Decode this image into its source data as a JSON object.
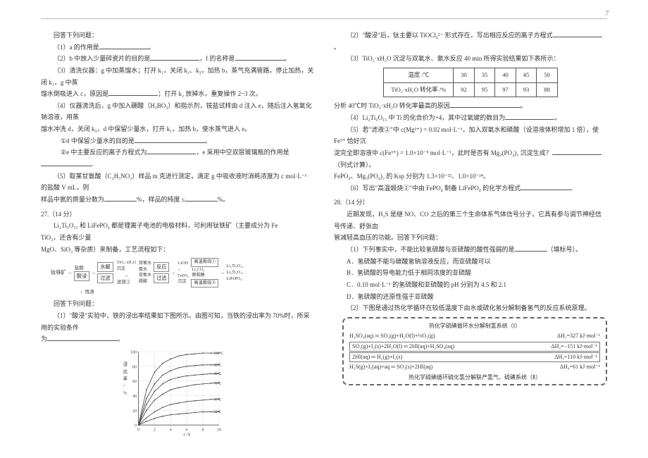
{
  "pageNumber": "7",
  "left": {
    "intro": "回答下列问题：",
    "q1": "（1）a 的作用是",
    "q2a": "（2）b 中放入少量碎瓷片的目的是",
    "q2b": "，f 的名称是",
    "q3a": "（3）清洗仪器：g 中加蒸馏水；打开 k₁，关闭 k₂、k₃，加热 b，蒸气充满管路，停止加热，关闭 k₁，g 中蒸",
    "q3b": "馏水倒吸进入 c，原因是",
    "q3c": "；打开 k₂ 放掉水，重复操作 2~3 次。",
    "q4a": "（4）仪器清洗后，g 中加入硼酸（H₃BO₃）和指示剂，铵盐试样由 d 注入 e，随后注入氢氧化钠溶液，用蒸",
    "q4b": "馏水冲洗 d，关闭 k₃，d 中保留少量水，打开 k₁，加热 b，使水蒸气进入 e。",
    "q4i": "①d 中保留少量水的目的是",
    "q4ii_a": "②e 中主要反应的离子方程式为",
    "q4ii_b": "，e 采用中空双层玻璃瓶的作用是",
    "q5a": "（5）取某甘氨酸（C₂H₅NO₂）样品 m 克进行测定，滴定 g 中吸收液时消耗浓度为 c mol·L⁻¹ 的盐酸 V mL，则",
    "q5b": "样品中氮的质量分数为",
    "q5c": "%，样品的纯度 ≤",
    "q5d": "%。",
    "sec27": "27.（14 分）",
    "p27a": "Li₂Ti₅O₁₅ 和 LiFePO₄ 都是锂离子电池的电极材料，可利用钛铁矿（主要成分为 Fe　　　TiO₃，还含有少量",
    "p27b": "MgO、SiO₂ 等杂质）来制备，工艺流程如下：",
    "flow": {
      "start": "钛铁矿",
      "n1": "盐酸",
      "s1": "酸浸",
      "s2": "过滤",
      "r1": "残渣",
      "mid_top": "TiO₂·xH₂O",
      "n2a": "双氧水\n氨水",
      "s3": "水解",
      "s4": "过滤",
      "r2": "滤液②",
      "n2b": "双氧水\n磷酸",
      "s5": "反应",
      "s6": "过滤",
      "mid2": "FePO₄\n沉淀",
      "n3": "LiOH",
      "s7": "高温煅烧①",
      "n4": "Li₂CO₃\n葡萄糖",
      "s8": "高温煅烧②",
      "out1_top": "Li₂Ti₅O₁₅",
      "out1_mid": "Li₂Ti₅O₁₅",
      "out2": "LiFePO₄"
    },
    "p27c": "回答下列问题：",
    "p27d": "（1）\"酸浸\"实验中，铁的浸出率结果如下图所示。由图可知，当铁的浸出率为 70%时，所采用的实验条件",
    "p27e": "为",
    "chart": {
      "type": "line",
      "xlim": [
        0,
        10
      ],
      "ylim": [
        0,
        100
      ],
      "xtick_step": 2,
      "ytick_step": 20,
      "xlabel": "t / h",
      "ylabel": "浸\n出\n率\n/\n%",
      "grid_color": "#d8d8d8",
      "axis_color": "#555555",
      "line_color": "#444444",
      "background_color": "#ffffff",
      "series": [
        {
          "label": "100℃",
          "label_pos": [
            9.2,
            98
          ],
          "points": [
            [
              0,
              0
            ],
            [
              1,
              48
            ],
            [
              2,
              72
            ],
            [
              3,
              84
            ],
            [
              4,
              90
            ],
            [
              5,
              94
            ],
            [
              6,
              96
            ],
            [
              7,
              97
            ],
            [
              8,
              98
            ],
            [
              9,
              98
            ],
            [
              10,
              98
            ]
          ]
        },
        {
          "label": "90℃",
          "label_pos": [
            9.2,
            82
          ],
          "points": [
            [
              0,
              0
            ],
            [
              1,
              36
            ],
            [
              2,
              56
            ],
            [
              3,
              68
            ],
            [
              4,
              74
            ],
            [
              5,
              78
            ],
            [
              6,
              80
            ],
            [
              7,
              81
            ],
            [
              8,
              82
            ],
            [
              9,
              82
            ],
            [
              10,
              82
            ]
          ]
        },
        {
          "label": "80℃",
          "label_pos": [
            9.2,
            70
          ],
          "points": [
            [
              0,
              0
            ],
            [
              1,
              28
            ],
            [
              2,
              46
            ],
            [
              3,
              56
            ],
            [
              4,
              62
            ],
            [
              5,
              65
            ],
            [
              6,
              67
            ],
            [
              7,
              68
            ],
            [
              8,
              69
            ],
            [
              9,
              70
            ],
            [
              10,
              70
            ]
          ]
        },
        {
          "label": "70℃",
          "label_pos": [
            9.2,
            57
          ],
          "points": [
            [
              0,
              0
            ],
            [
              1,
              20
            ],
            [
              2,
              34
            ],
            [
              3,
              42
            ],
            [
              4,
              48
            ],
            [
              5,
              51
            ],
            [
              6,
              53
            ],
            [
              7,
              55
            ],
            [
              8,
              56
            ],
            [
              9,
              57
            ],
            [
              10,
              57
            ]
          ]
        },
        {
          "label": "60℃",
          "label_pos": [
            9.2,
            35
          ],
          "points": [
            [
              0,
              0
            ],
            [
              1,
              10
            ],
            [
              2,
              18
            ],
            [
              3,
              24
            ],
            [
              4,
              28
            ],
            [
              5,
              30
            ],
            [
              6,
              32
            ],
            [
              7,
              33
            ],
            [
              8,
              34
            ],
            [
              9,
              35
            ],
            [
              10,
              35
            ]
          ]
        },
        {
          "label": "50℃",
          "label_pos": [
            9.2,
            18
          ],
          "points": [
            [
              0,
              0
            ],
            [
              1,
              5
            ],
            [
              2,
              9
            ],
            [
              3,
              12
            ],
            [
              4,
              14
            ],
            [
              5,
              15
            ],
            [
              6,
              16
            ],
            [
              7,
              17
            ],
            [
              8,
              18
            ],
            [
              9,
              18
            ],
            [
              10,
              18
            ]
          ]
        }
      ]
    }
  },
  "right": {
    "r2": "（2）\"酸浸\"后，钛主要以 TiOCl₄²⁻ 形式存在，写出相应反应的离子方程式",
    "r3": "（3）TiO₂·xH₂O 沉淀与双氧水、氨水反应 40 min 所得实验结果如下表所示：",
    "table": {
      "headers": [
        "温度 /℃",
        "30",
        "35",
        "40",
        "45",
        "50"
      ],
      "row_label": "TiO₂·xH₂O 转化率 /%",
      "row": [
        "92",
        "95",
        "97",
        "93",
        "88"
      ]
    },
    "r3b": "分析 40℃时 TiO₂·xH₂O 转化率最高的原因",
    "r4a": "（4）Li₂Ti₅O₁₅ 中 Ti 的化合价为+4，其中过氧键的数目为",
    "r5a": "（5）若\"滤液②\"中 c(Mg²⁺) = 0.02 mol·L⁻¹，加入双氧水和磷酸（设溶液体积增加 1 倍），使 Fe³⁺ 恰好沉",
    "r5b": "淀完全即溶液中 c(Fe³⁺) = 1.0×10⁻⁵ mol·L⁻¹，此时是否有 Mg₃(PO₄)₂ 沉淀生成？",
    "r5c": "（列式计算）。",
    "r5d": "FePO₄、Mg₃(PO₄)₂ 的 Ksp 分别为 1.3×10⁻²²、1.0×10⁻²⁴。",
    "r6": "（6）写出\"高温煅烧②\"中由 FePO₄ 制备 LiFePO₄ 的化学方程式",
    "sec28": "28.（14 分）",
    "p28a": "近期发现，H₂S 是继 NO、CO 之后的第三个生命体系气体信号分子，它具有参与调节神经信号传递、舒张血",
    "p28b": "管减轻高血压的功能。回答下列问题：",
    "q28_1a": "（1）下列事实中，不能比较氢硫酸与亚硫酸的酸性强弱的是",
    "q28_1b": "（填标号）。",
    "optA": "A．氢硫酸不能与碳酸氢钠溶液反应，而亚硫酸可以",
    "optB": "B．氢硫酸的导电能力低于相同浓度的亚硫酸",
    "optC": "C．0.10 mol·L⁻¹ 的氢硫酸和亚硫酸的 pH 分别为 4.5 和 2.1",
    "optD": "D．氢硫酸的还原性强于亚硫酸",
    "q28_2": "（2）下图是通过热化学循环在较低温度下由水或硫化氢分解制备氢气的反应系统原理。",
    "system": {
      "title": "热化学硫碘循环水分解制氢系统（Ⅰ）",
      "eq1_l": "H₂SO₄(aq) ═ SO₂(g)+H₂O(l)+½O₂(g)",
      "eq1_r": "ΔH₁=327 kJ·mol⁻¹",
      "eq2_l": "SO₂(g)+I₂(s)+2H₂O(l) ═ 2HI(aq)+H₂SO₄(aq)",
      "eq2_r": "ΔH₂=−151 kJ·mol⁻¹",
      "eq3_l": "2HI(aq) ═ H₂(g)+I₂(s)",
      "eq3_r": "ΔH₃=110 kJ·mol⁻¹",
      "eq4_l": "H₂S(g)+I₂(aq)+aq ═ SO₂(s)+2HI(aq)",
      "eq4_r": "ΔH₄=61 kJ·mol⁻¹",
      "footer": "热化学硫碘循环硫化氢分解联产氢气、硫磺系统（Ⅱ）"
    }
  }
}
